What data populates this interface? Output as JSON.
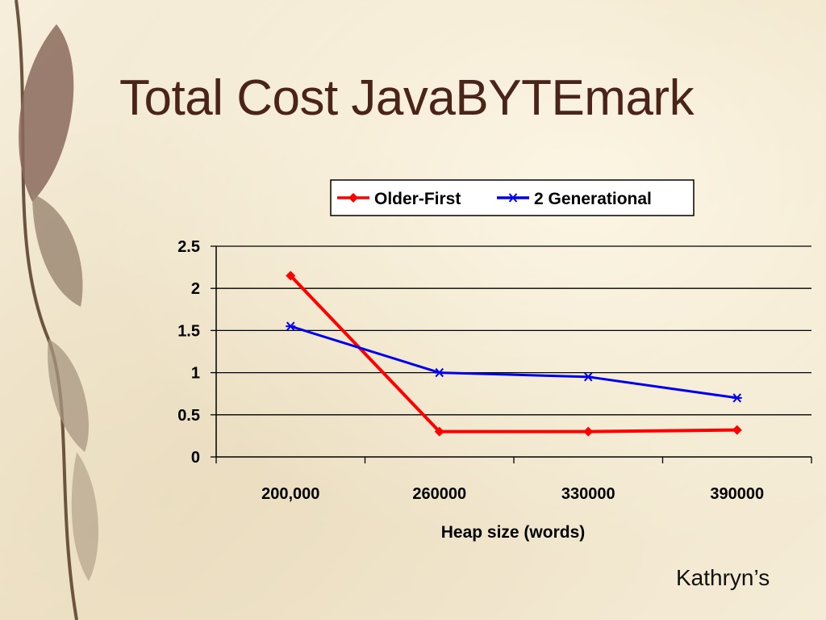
{
  "slide": {
    "title": "Total Cost JavaBYTEmark",
    "credit": "Kathryn’s"
  },
  "decor": {
    "left_image": "eucalyptus-leaf-branch"
  },
  "chart_data": {
    "type": "line",
    "categories": [
      "200,000",
      "260000",
      "330000",
      "390000"
    ],
    "xlabel": "Heap size (words)",
    "ylabel": "",
    "ylim": [
      0,
      2.5
    ],
    "yticks": [
      0,
      0.5,
      1,
      1.5,
      2,
      2.5
    ],
    "ytick_labels": [
      "0",
      "0.5",
      "1",
      "1.5",
      "2",
      "2.5"
    ],
    "grid": true,
    "legend": "top",
    "series": [
      {
        "name": "Older-First",
        "values": [
          2.15,
          0.3,
          0.3,
          0.32
        ],
        "color": "#ff0000",
        "marker": "diamond"
      },
      {
        "name": "2 Generational",
        "values": [
          1.55,
          1.0,
          0.95,
          0.7
        ],
        "color": "#0000ee",
        "marker": "star"
      }
    ]
  }
}
